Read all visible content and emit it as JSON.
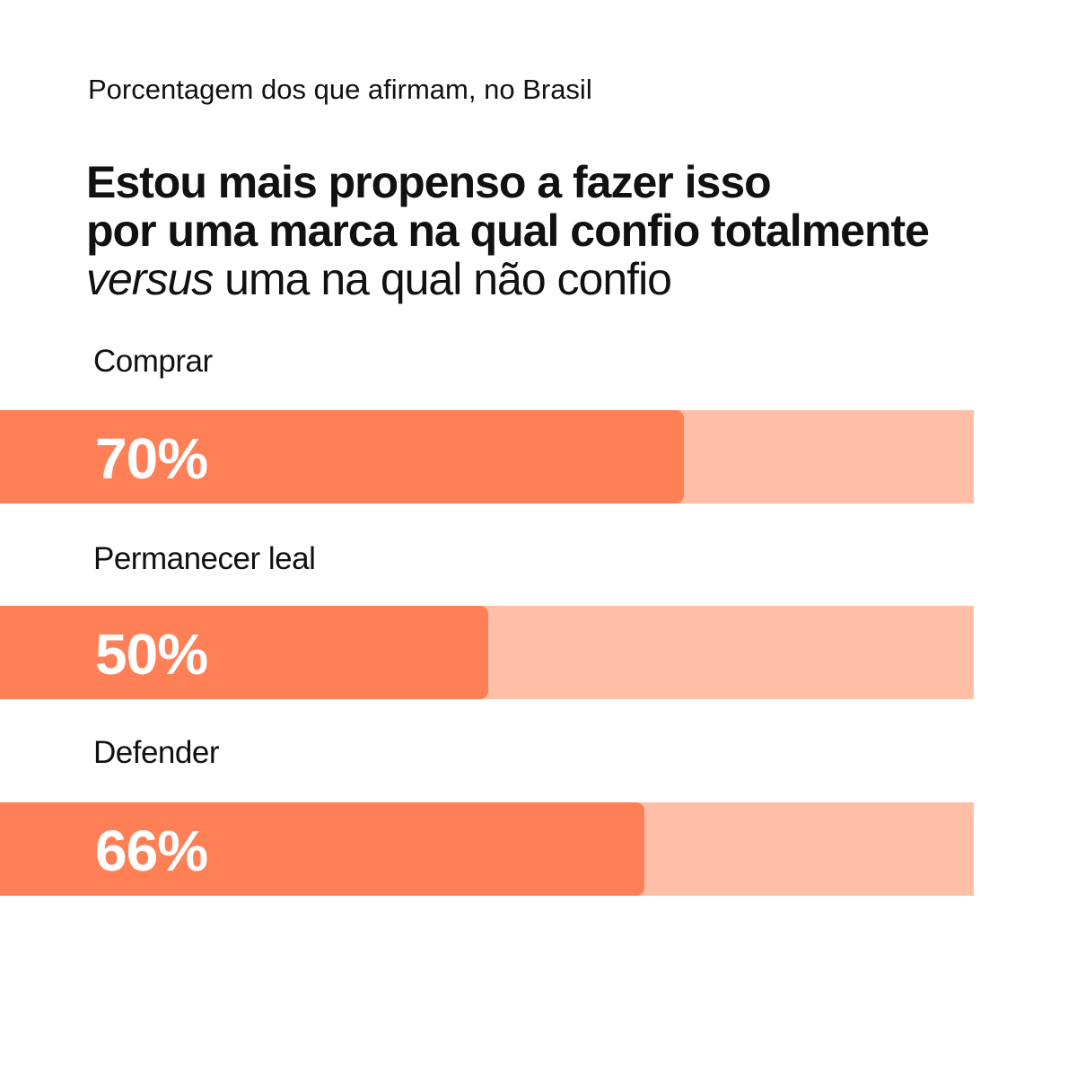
{
  "colors": {
    "bar_fill": "#ff7f56",
    "bar_track": "#ffbea6",
    "text": "#111111",
    "value_text": "#ffffff"
  },
  "chart_data": {
    "type": "bar",
    "orientation": "horizontal",
    "subtitle": "Porcentagem dos que afirmam, no Brasil",
    "title": {
      "line1": "Estou mais propenso a fazer isso",
      "line2": "por uma marca na qual confio totalmente",
      "line3_emphasis": "versus",
      "line3_rest": " uma na qual não confio"
    },
    "xlim": [
      0,
      100
    ],
    "categories": [
      "Comprar",
      "Permanecer leal",
      "Defender"
    ],
    "values": [
      70,
      50,
      66
    ],
    "value_labels": [
      "70%",
      "50%",
      "66%"
    ],
    "grid": false,
    "legend": "none"
  }
}
